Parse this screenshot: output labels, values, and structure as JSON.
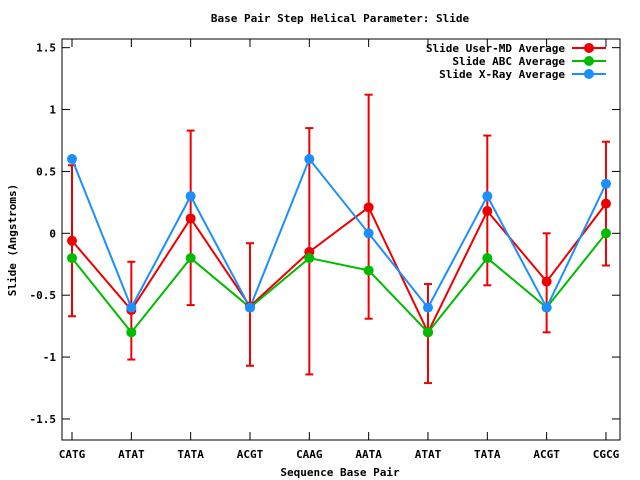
{
  "chart_data": {
    "type": "line",
    "title": "Base Pair Step Helical Parameter: Slide",
    "xlabel": "Sequence Base Pair",
    "ylabel": "Slide (Angstroms)",
    "categories": [
      "CATG",
      "ATAT",
      "TATA",
      "ACGT",
      "CAAG",
      "AATA",
      "ATAT",
      "TATA",
      "ACGT",
      "CGCG"
    ],
    "ylim": [
      -1.67,
      1.57
    ],
    "yticks": [
      -1.5,
      -1,
      -0.5,
      0,
      0.5,
      1,
      1.5
    ],
    "ytick_labels": [
      "-1.5",
      "-1",
      "-0.5",
      "0",
      "0.5",
      "1",
      "1.5"
    ],
    "grid": false,
    "legend_position": "top-right",
    "series": [
      {
        "name": "Slide User-MD Average",
        "color": "#ee0000",
        "values": [
          -0.06,
          -0.62,
          0.12,
          -0.59,
          -0.15,
          0.21,
          -0.8,
          0.18,
          -0.39,
          0.24
        ],
        "error_low": [
          -0.67,
          -1.02,
          -0.58,
          -1.07,
          -1.14,
          -0.69,
          -1.21,
          -0.42,
          -0.8,
          -0.26
        ],
        "error_high": [
          0.55,
          -0.23,
          0.83,
          -0.08,
          0.85,
          1.12,
          -0.41,
          0.79,
          0.0,
          0.74
        ]
      },
      {
        "name": "Slide ABC Average",
        "color": "#00bb00",
        "values": [
          -0.2,
          -0.8,
          -0.2,
          -0.6,
          -0.2,
          -0.3,
          -0.8,
          -0.2,
          -0.6,
          0.0
        ]
      },
      {
        "name": "Slide X-Ray Average",
        "color": "#1a8fff",
        "values": [
          0.6,
          -0.6,
          0.3,
          -0.6,
          0.6,
          0.0,
          -0.6,
          0.3,
          -0.6,
          0.4
        ]
      }
    ]
  }
}
